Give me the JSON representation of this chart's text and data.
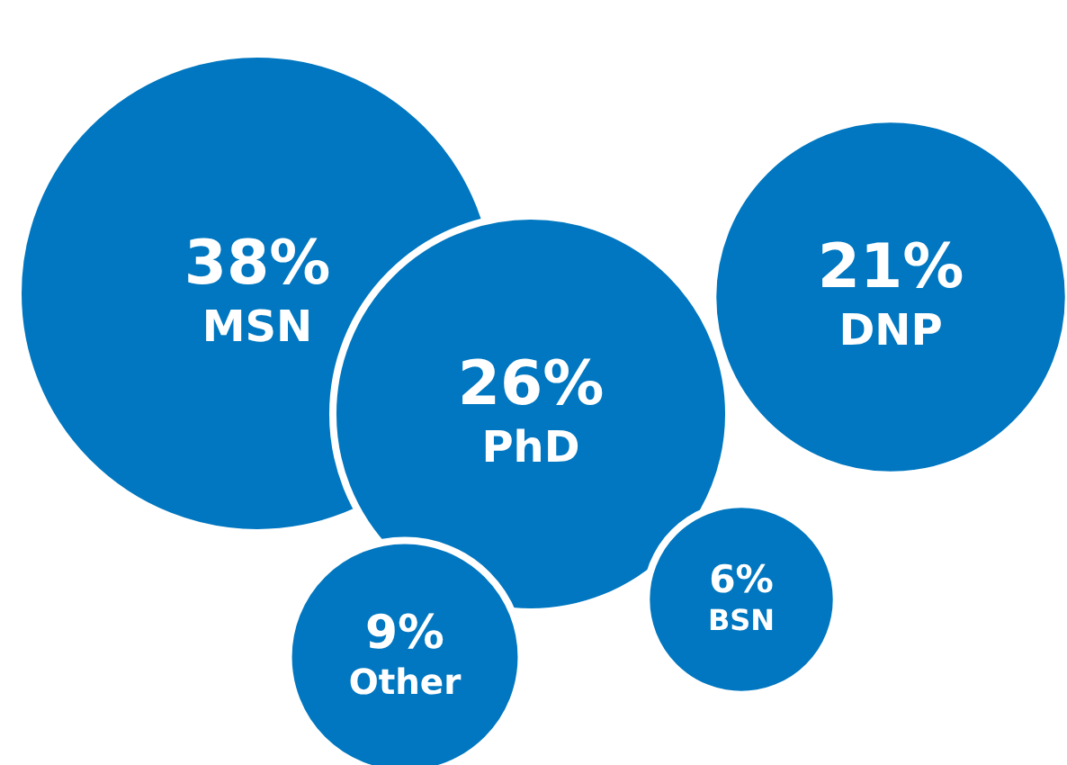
{
  "chart_data": {
    "type": "other",
    "categories": [
      "MSN",
      "PhD",
      "DNP",
      "Other",
      "BSN"
    ],
    "values": [
      38,
      26,
      21,
      9,
      6
    ],
    "value_labels": [
      "38%",
      "26%",
      "21%",
      "9%",
      "6%"
    ],
    "colors": [
      "#0077c0",
      "#0077c0",
      "#0077c0",
      "#0077c0",
      "#0077c0"
    ]
  }
}
